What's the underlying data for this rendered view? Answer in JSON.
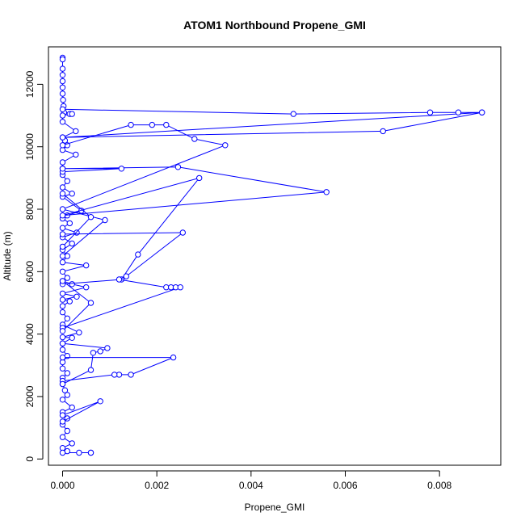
{
  "chart_data": {
    "type": "line",
    "title": "ATOM1 Northbound Propene_GMI",
    "xlabel": "Propene_GMI",
    "ylabel": "Altitude (m)",
    "xlim": [
      -0.0003,
      0.0093
    ],
    "ylim": [
      -200,
      13200
    ],
    "xticks": [
      0.0,
      0.002,
      0.004,
      0.006,
      0.008
    ],
    "xtick_labels": [
      "0.000",
      "0.002",
      "0.004",
      "0.006",
      "0.008"
    ],
    "yticks": [
      0,
      2000,
      4000,
      6000,
      8000,
      10000,
      12000
    ],
    "ytick_labels": [
      "0",
      "2000",
      "4000",
      "6000",
      "8000",
      "10000",
      "12000"
    ],
    "grid": false,
    "marker": "open-circle",
    "color": "#0000ff",
    "series": [
      {
        "values": [
          [
            0.0,
            12850
          ],
          [
            0.0,
            12800
          ],
          [
            0.0,
            12500
          ],
          [
            0.0,
            12300
          ],
          [
            0.0,
            12100
          ],
          [
            0.0,
            11900
          ],
          [
            0.0,
            11700
          ],
          [
            1e-05,
            11500
          ],
          [
            2e-05,
            11300
          ],
          [
            3e-05,
            11100
          ],
          [
            0.00015,
            11050
          ],
          [
            0.0002,
            11050
          ],
          [
            0.0,
            11000
          ],
          [
            0.0,
            10800
          ],
          [
            0.00028,
            10500
          ],
          [
            0.0,
            10300
          ],
          [
            5e-05,
            10200
          ],
          [
            0.0001,
            10050
          ],
          [
            0.0,
            9900
          ],
          [
            0.00028,
            9750
          ],
          [
            0.0,
            9500
          ],
          [
            0.0,
            9300
          ],
          [
            0.0,
            9100
          ],
          [
            0.0001,
            8900
          ],
          [
            0.0,
            8700
          ],
          [
            0.0002,
            8500
          ],
          [
            0.0,
            8400
          ],
          [
            0.0004,
            7950
          ],
          [
            0.0001,
            7800
          ],
          [
            0.0,
            7700
          ],
          [
            0.00015,
            7550
          ],
          [
            0.0,
            7400
          ],
          [
            0.0003,
            7250
          ],
          [
            0.0,
            7100
          ],
          [
            0.0002,
            6900
          ],
          [
            0.0,
            6700
          ],
          [
            0.0001,
            6500
          ],
          [
            0.0,
            6300
          ],
          [
            0.0005,
            6200
          ],
          [
            0.0,
            6000
          ],
          [
            0.0001,
            5800
          ],
          [
            0.0,
            5700
          ],
          [
            0.0002,
            5600
          ],
          [
            0.0005,
            5500
          ],
          [
            0.0,
            5300
          ],
          [
            0.0003,
            5200
          ],
          [
            0.0,
            5100
          ],
          [
            0.00015,
            5050
          ],
          [
            0.0,
            4900
          ],
          [
            0.0,
            4700
          ],
          [
            0.0001,
            4500
          ],
          [
            0.0,
            4300
          ],
          [
            0.00035,
            4050
          ],
          [
            0.0,
            3900
          ],
          [
            0.0002,
            3880
          ],
          [
            0.0,
            3700
          ],
          [
            0.0,
            3500
          ],
          [
            0.0001,
            3300
          ],
          [
            0.0,
            3100
          ],
          [
            0.0,
            2900
          ],
          [
            0.0001,
            2750
          ],
          [
            0.0,
            2600
          ],
          [
            0.0,
            2400
          ],
          [
            5e-05,
            2200
          ],
          [
            0.0001,
            2050
          ],
          [
            0.0,
            1900
          ],
          [
            0.0002,
            1650
          ],
          [
            0.0,
            1500
          ],
          [
            0.0001,
            1300
          ],
          [
            0.0,
            1100
          ],
          [
            0.0001,
            900
          ],
          [
            0.0,
            700
          ],
          [
            0.0002,
            500
          ],
          [
            0.0,
            350
          ],
          [
            0.0001,
            250
          ],
          [
            0.0,
            200
          ],
          [
            0.00035,
            200
          ],
          [
            0.0006,
            200
          ],
          [
            0.0006,
            200
          ]
        ]
      },
      {
        "values": [
          [
            0.0,
            11200
          ],
          [
            0.0049,
            11050
          ],
          [
            0.0078,
            11100
          ],
          [
            0.0084,
            11100
          ],
          [
            0.0089,
            11100
          ],
          [
            0.0,
            10300
          ],
          [
            0.0068,
            10500
          ],
          [
            0.0089,
            11100
          ]
        ]
      },
      {
        "values": [
          [
            0.0,
            9200
          ],
          [
            0.00125,
            9300
          ],
          [
            0.0,
            9300
          ],
          [
            0.00245,
            9350
          ],
          [
            0.0056,
            8550
          ],
          [
            0.0,
            7800
          ],
          [
            0.0029,
            9000
          ],
          [
            0.0016,
            6550
          ],
          [
            0.00125,
            5750
          ],
          [
            0.0,
            5600
          ]
        ]
      },
      {
        "values": [
          [
            0.0,
            10050
          ],
          [
            0.00145,
            10700
          ],
          [
            0.0019,
            10700
          ],
          [
            0.0022,
            10700
          ],
          [
            0.0028,
            10250
          ],
          [
            0.00345,
            10050
          ],
          [
            0.0,
            8000
          ],
          [
            0.0009,
            7650
          ],
          [
            0.0,
            6500
          ]
        ]
      },
      {
        "values": [
          [
            0.0,
            7200
          ],
          [
            0.00255,
            7250
          ],
          [
            0.00135,
            5850
          ],
          [
            0.0012,
            5750
          ],
          [
            0.0022,
            5500
          ],
          [
            0.0023,
            5500
          ],
          [
            0.0024,
            5500
          ],
          [
            0.0025,
            5500
          ],
          [
            0.0,
            4200
          ]
        ]
      },
      {
        "values": [
          [
            0.0,
            8500
          ],
          [
            0.0006,
            7750
          ],
          [
            0.0,
            6800
          ]
        ]
      },
      {
        "values": [
          [
            0.0,
            3250
          ],
          [
            0.00235,
            3250
          ],
          [
            0.00145,
            2700
          ],
          [
            0.0012,
            2700
          ],
          [
            0.0011,
            2700
          ],
          [
            0.0,
            2500
          ]
        ]
      },
      {
        "values": [
          [
            0.0,
            3700
          ],
          [
            0.00095,
            3550
          ],
          [
            0.0008,
            3450
          ],
          [
            0.00065,
            3400
          ],
          [
            0.0006,
            2850
          ],
          [
            0.0,
            2400
          ]
        ]
      },
      {
        "values": [
          [
            0.0,
            5700
          ],
          [
            0.0006,
            5000
          ],
          [
            0.0,
            4100
          ]
        ]
      },
      {
        "values": [
          [
            0.0,
            1400
          ],
          [
            0.0008,
            1850
          ],
          [
            0.0,
            1200
          ]
        ]
      }
    ]
  }
}
